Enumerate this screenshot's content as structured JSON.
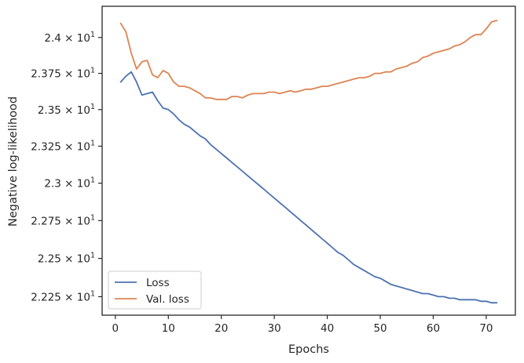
{
  "chart_data": {
    "type": "line",
    "title": "",
    "xlabel": "Epochs",
    "ylabel": "Negative log-likelihood",
    "xlim": [
      -2.5,
      75.5
    ],
    "ylim": [
      22.13,
      24.22
    ],
    "y_scale": "log",
    "grid": false,
    "legend_position": "lower-left",
    "x_ticks": [
      0,
      10,
      20,
      30,
      40,
      50,
      60,
      70
    ],
    "x_tick_labels": [
      "0",
      "10",
      "20",
      "30",
      "40",
      "50",
      "60",
      "70"
    ],
    "y_ticks": [
      {
        "value": 22.25,
        "mantissa": "2.225",
        "exponent": "1"
      },
      {
        "value": 22.5,
        "mantissa": "2.25",
        "exponent": "1"
      },
      {
        "value": 22.75,
        "mantissa": "2.275",
        "exponent": "1"
      },
      {
        "value": 23.0,
        "mantissa": "2.3",
        "exponent": "1"
      },
      {
        "value": 23.25,
        "mantissa": "2.325",
        "exponent": "1"
      },
      {
        "value": 23.5,
        "mantissa": "2.35",
        "exponent": "1"
      },
      {
        "value": 23.75,
        "mantissa": "2.375",
        "exponent": "1"
      },
      {
        "value": 24.0,
        "mantissa": "2.4",
        "exponent": "1"
      }
    ],
    "times_sign": "×",
    "tick_base": "10",
    "x": [
      1,
      2,
      3,
      4,
      5,
      6,
      7,
      8,
      9,
      10,
      11,
      12,
      13,
      14,
      15,
      16,
      17,
      18,
      19,
      20,
      21,
      22,
      23,
      24,
      25,
      26,
      27,
      28,
      29,
      30,
      31,
      32,
      33,
      34,
      35,
      36,
      37,
      38,
      39,
      40,
      41,
      42,
      43,
      44,
      45,
      46,
      47,
      48,
      49,
      50,
      51,
      52,
      53,
      54,
      55,
      56,
      57,
      58,
      59,
      60,
      61,
      62,
      63,
      64,
      65,
      66,
      67,
      68,
      69,
      70,
      71,
      72
    ],
    "series": [
      {
        "name": "Loss",
        "color": "#4c72b0",
        "values": [
          23.69,
          23.73,
          23.76,
          23.69,
          23.6,
          23.61,
          23.62,
          23.56,
          23.51,
          23.5,
          23.47,
          23.43,
          23.4,
          23.38,
          23.35,
          23.32,
          23.3,
          23.26,
          23.23,
          23.2,
          23.17,
          23.14,
          23.11,
          23.08,
          23.05,
          23.02,
          22.99,
          22.96,
          22.93,
          22.9,
          22.87,
          22.84,
          22.81,
          22.78,
          22.75,
          22.72,
          22.69,
          22.66,
          22.63,
          22.6,
          22.57,
          22.54,
          22.52,
          22.49,
          22.46,
          22.44,
          22.42,
          22.4,
          22.38,
          22.37,
          22.35,
          22.33,
          22.32,
          22.31,
          22.3,
          22.29,
          22.28,
          22.27,
          22.27,
          22.26,
          22.25,
          22.25,
          22.24,
          22.24,
          22.23,
          22.23,
          22.23,
          22.23,
          22.22,
          22.22,
          22.21,
          22.21
        ]
      },
      {
        "name": "Val. loss",
        "color": "#dd8452",
        "values": [
          24.1,
          24.04,
          23.89,
          23.78,
          23.83,
          23.84,
          23.74,
          23.72,
          23.77,
          23.75,
          23.69,
          23.66,
          23.66,
          23.65,
          23.63,
          23.61,
          23.58,
          23.58,
          23.57,
          23.57,
          23.57,
          23.59,
          23.59,
          23.58,
          23.6,
          23.61,
          23.61,
          23.61,
          23.62,
          23.62,
          23.61,
          23.62,
          23.63,
          23.62,
          23.63,
          23.64,
          23.64,
          23.65,
          23.66,
          23.66,
          23.67,
          23.68,
          23.69,
          23.7,
          23.71,
          23.72,
          23.72,
          23.73,
          23.75,
          23.75,
          23.76,
          23.76,
          23.78,
          23.79,
          23.8,
          23.82,
          23.83,
          23.86,
          23.87,
          23.89,
          23.9,
          23.91,
          23.92,
          23.94,
          23.95,
          23.97,
          24.0,
          24.02,
          24.02,
          24.06,
          24.11,
          24.12
        ]
      }
    ]
  }
}
